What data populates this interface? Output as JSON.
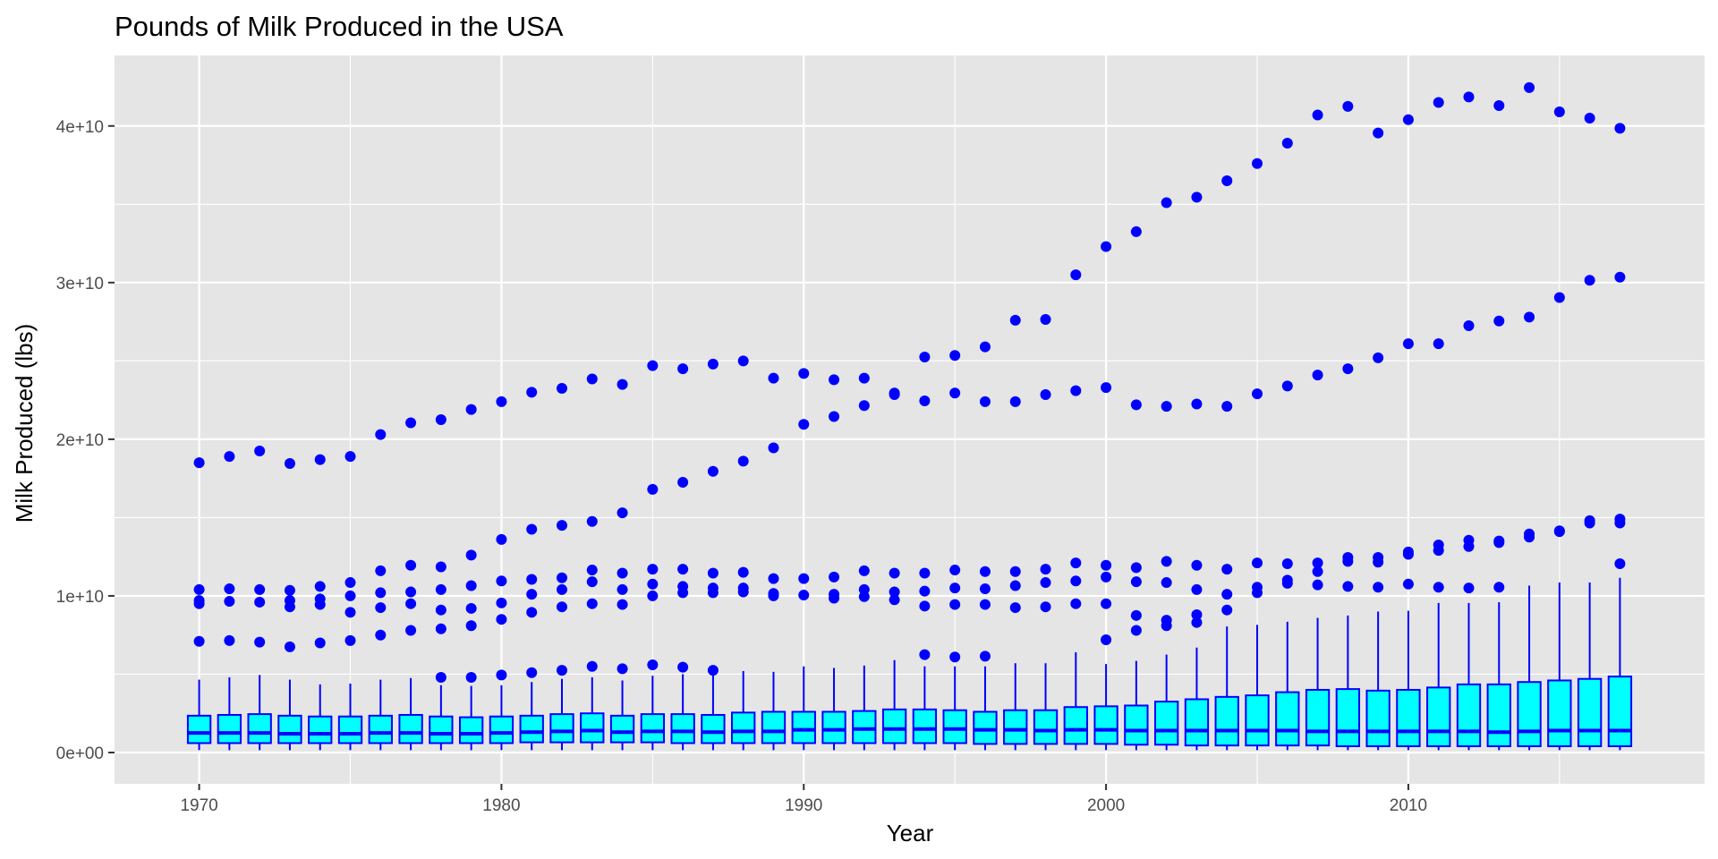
{
  "chart_data": {
    "type": "boxplot",
    "title": "Pounds of Milk Produced in the USA",
    "xlabel": "Year",
    "ylabel": "Milk Produced (lbs)",
    "xlim": [
      1967.2,
      2019.8
    ],
    "ylim": [
      -2000000000.0,
      44500000000.0
    ],
    "x_ticks": [
      1970,
      1980,
      1990,
      2000,
      2010
    ],
    "x_tick_labels": [
      "1970",
      "1980",
      "1990",
      "2000",
      "2010"
    ],
    "y_ticks": [
      0,
      10000000000.0,
      20000000000.0,
      30000000000.0,
      40000000000.0
    ],
    "y_tick_labels": [
      "0e+00",
      "1e+10",
      "2e+10",
      "3e+10",
      "4e+10"
    ],
    "grid": true,
    "legend": "none",
    "colors": {
      "panel": "#E5E5E5",
      "grid": "#FFFFFF",
      "box_fill": "#00FFFF",
      "box_outline": "#0000FF",
      "outlier": "#0000FF"
    },
    "boxes": [
      {
        "year": 1970,
        "min": 150000000.0,
        "q1": 600000000.0,
        "median": 1250000000.0,
        "q3": 2350000000.0,
        "max": 4650000000.0,
        "outliers": [
          7100000000.0,
          9500000000.0,
          9700000000.0,
          10400000000.0,
          18500000000.0
        ]
      },
      {
        "year": 1971,
        "min": 150000000.0,
        "q1": 600000000.0,
        "median": 1250000000.0,
        "q3": 2400000000.0,
        "max": 4800000000.0,
        "outliers": [
          7150000000.0,
          9650000000.0,
          10450000000.0,
          18900000000.0
        ]
      },
      {
        "year": 1972,
        "min": 150000000.0,
        "q1": 600000000.0,
        "median": 1250000000.0,
        "q3": 2450000000.0,
        "max": 4950000000.0,
        "outliers": [
          7050000000.0,
          9600000000.0,
          10400000000.0,
          19250000000.0
        ]
      },
      {
        "year": 1973,
        "min": 150000000.0,
        "q1": 600000000.0,
        "median": 1200000000.0,
        "q3": 2350000000.0,
        "max": 4650000000.0,
        "outliers": [
          6750000000.0,
          9300000000.0,
          9700000000.0,
          10350000000.0,
          18450000000.0
        ]
      },
      {
        "year": 1974,
        "min": 150000000.0,
        "q1": 600000000.0,
        "median": 1200000000.0,
        "q3": 2300000000.0,
        "max": 4350000000.0,
        "outliers": [
          7000000000.0,
          9450000000.0,
          9800000000.0,
          10600000000.0,
          18700000000.0
        ]
      },
      {
        "year": 1975,
        "min": 150000000.0,
        "q1": 600000000.0,
        "median": 1200000000.0,
        "q3": 2300000000.0,
        "max": 4400000000.0,
        "outliers": [
          7150000000.0,
          8950000000.0,
          10000000000.0,
          10850000000.0,
          18900000000.0
        ]
      },
      {
        "year": 1976,
        "min": 150000000.0,
        "q1": 600000000.0,
        "median": 1250000000.0,
        "q3": 2350000000.0,
        "max": 4650000000.0,
        "outliers": [
          7500000000.0,
          9250000000.0,
          10200000000.0,
          11600000000.0,
          20300000000.0
        ]
      },
      {
        "year": 1977,
        "min": 150000000.0,
        "q1": 600000000.0,
        "median": 1250000000.0,
        "q3": 2400000000.0,
        "max": 4750000000.0,
        "outliers": [
          7800000000.0,
          9500000000.0,
          10250000000.0,
          11950000000.0,
          21050000000.0
        ]
      },
      {
        "year": 1978,
        "min": 150000000.0,
        "q1": 600000000.0,
        "median": 1200000000.0,
        "q3": 2300000000.0,
        "max": 4300000000.0,
        "outliers": [
          4800000000.0,
          7900000000.0,
          9100000000.0,
          10400000000.0,
          11850000000.0,
          21250000000.0
        ]
      },
      {
        "year": 1979,
        "min": 150000000.0,
        "q1": 600000000.0,
        "median": 1200000000.0,
        "q3": 2250000000.0,
        "max": 4250000000.0,
        "outliers": [
          4800000000.0,
          8100000000.0,
          9200000000.0,
          10650000000.0,
          12600000000.0,
          21900000000.0
        ]
      },
      {
        "year": 1980,
        "min": 150000000.0,
        "q1": 600000000.0,
        "median": 1250000000.0,
        "q3": 2300000000.0,
        "max": 4300000000.0,
        "outliers": [
          4950000000.0,
          8500000000.0,
          9550000000.0,
          10950000000.0,
          13600000000.0,
          22400000000.0
        ]
      },
      {
        "year": 1981,
        "min": 150000000.0,
        "q1": 650000000.0,
        "median": 1300000000.0,
        "q3": 2350000000.0,
        "max": 4500000000.0,
        "outliers": [
          5100000000.0,
          8950000000.0,
          10100000000.0,
          11050000000.0,
          14250000000.0,
          23000000000.0
        ]
      },
      {
        "year": 1982,
        "min": 150000000.0,
        "q1": 650000000.0,
        "median": 1350000000.0,
        "q3": 2450000000.0,
        "max": 4700000000.0,
        "outliers": [
          5250000000.0,
          9300000000.0,
          10400000000.0,
          11150000000.0,
          14500000000.0,
          23250000000.0
        ]
      },
      {
        "year": 1983,
        "min": 150000000.0,
        "q1": 650000000.0,
        "median": 1400000000.0,
        "q3": 2500000000.0,
        "max": 4800000000.0,
        "outliers": [
          5500000000.0,
          9500000000.0,
          10900000000.0,
          11650000000.0,
          14750000000.0,
          23850000000.0
        ]
      },
      {
        "year": 1984,
        "min": 150000000.0,
        "q1": 650000000.0,
        "median": 1300000000.0,
        "q3": 2350000000.0,
        "max": 4600000000.0,
        "outliers": [
          5350000000.0,
          9450000000.0,
          10400000000.0,
          11450000000.0,
          15300000000.0,
          23500000000.0
        ]
      },
      {
        "year": 1985,
        "min": 150000000.0,
        "q1": 650000000.0,
        "median": 1350000000.0,
        "q3": 2450000000.0,
        "max": 4900000000.0,
        "outliers": [
          5600000000.0,
          10000000000.0,
          10750000000.0,
          11700000000.0,
          16800000000.0,
          24700000000.0
        ]
      },
      {
        "year": 1986,
        "min": 150000000.0,
        "q1": 600000000.0,
        "median": 1350000000.0,
        "q3": 2450000000.0,
        "max": 5000000000.0,
        "outliers": [
          5450000000.0,
          10200000000.0,
          10600000000.0,
          11700000000.0,
          17250000000.0,
          24500000000.0
        ]
      },
      {
        "year": 1987,
        "min": 150000000.0,
        "q1": 600000000.0,
        "median": 1300000000.0,
        "q3": 2400000000.0,
        "max": 5100000000.0,
        "outliers": [
          5250000000.0,
          10200000000.0,
          10500000000.0,
          11450000000.0,
          17950000000.0,
          24800000000.0
        ]
      },
      {
        "year": 1988,
        "min": 150000000.0,
        "q1": 600000000.0,
        "median": 1350000000.0,
        "q3": 2550000000.0,
        "max": 5200000000.0,
        "outliers": [
          10250000000.0,
          10500000000.0,
          11500000000.0,
          18600000000.0,
          25000000000.0
        ]
      },
      {
        "year": 1989,
        "min": 150000000.0,
        "q1": 600000000.0,
        "median": 1350000000.0,
        "q3": 2600000000.0,
        "max": 5150000000.0,
        "outliers": [
          10000000000.0,
          10150000000.0,
          11100000000.0,
          19450000000.0,
          23900000000.0
        ]
      },
      {
        "year": 1990,
        "min": 150000000.0,
        "q1": 600000000.0,
        "median": 1450000000.0,
        "q3": 2600000000.0,
        "max": 5500000000.0,
        "outliers": [
          10050000000.0,
          11100000000.0,
          20950000000.0,
          24200000000.0
        ]
      },
      {
        "year": 1991,
        "min": 150000000.0,
        "q1": 600000000.0,
        "median": 1450000000.0,
        "q3": 2600000000.0,
        "max": 5400000000.0,
        "outliers": [
          9850000000.0,
          10100000000.0,
          11200000000.0,
          21450000000.0,
          23800000000.0
        ]
      },
      {
        "year": 1992,
        "min": 150000000.0,
        "q1": 600000000.0,
        "median": 1500000000.0,
        "q3": 2650000000.0,
        "max": 5550000000.0,
        "outliers": [
          9950000000.0,
          10400000000.0,
          11600000000.0,
          22150000000.0,
          23900000000.0
        ]
      },
      {
        "year": 1993,
        "min": 150000000.0,
        "q1": 600000000.0,
        "median": 1500000000.0,
        "q3": 2750000000.0,
        "max": 5900000000.0,
        "outliers": [
          9750000000.0,
          10250000000.0,
          11450000000.0,
          22950000000.0,
          22850000000.0
        ]
      },
      {
        "year": 1994,
        "min": 150000000.0,
        "q1": 600000000.0,
        "median": 1500000000.0,
        "q3": 2750000000.0,
        "max": 5500000000.0,
        "outliers": [
          6250000000.0,
          9350000000.0,
          10300000000.0,
          11450000000.0,
          22450000000.0,
          25250000000.0
        ]
      },
      {
        "year": 1995,
        "min": 150000000.0,
        "q1": 600000000.0,
        "median": 1500000000.0,
        "q3": 2700000000.0,
        "max": 5500000000.0,
        "outliers": [
          6100000000.0,
          9450000000.0,
          10500000000.0,
          11650000000.0,
          22950000000.0,
          25350000000.0
        ]
      },
      {
        "year": 1996,
        "min": 150000000.0,
        "q1": 550000000.0,
        "median": 1450000000.0,
        "q3": 2600000000.0,
        "max": 5500000000.0,
        "outliers": [
          6150000000.0,
          9450000000.0,
          10450000000.0,
          11550000000.0,
          22400000000.0,
          25900000000.0
        ]
      },
      {
        "year": 1997,
        "min": 150000000.0,
        "q1": 550000000.0,
        "median": 1450000000.0,
        "q3": 2700000000.0,
        "max": 5700000000.0,
        "outliers": [
          9250000000.0,
          10650000000.0,
          11550000000.0,
          22400000000.0,
          27600000000.0
        ]
      },
      {
        "year": 1998,
        "min": 150000000.0,
        "q1": 550000000.0,
        "median": 1400000000.0,
        "q3": 2700000000.0,
        "max": 5700000000.0,
        "outliers": [
          9300000000.0,
          10850000000.0,
          11700000000.0,
          22850000000.0,
          27650000000.0
        ]
      },
      {
        "year": 1999,
        "min": 150000000.0,
        "q1": 550000000.0,
        "median": 1450000000.0,
        "q3": 2900000000.0,
        "max": 6400000000.0,
        "outliers": [
          9500000000.0,
          10950000000.0,
          12100000000.0,
          23100000000.0,
          30500000000.0
        ]
      },
      {
        "year": 2000,
        "min": 150000000.0,
        "q1": 550000000.0,
        "median": 1450000000.0,
        "q3": 2950000000.0,
        "max": 5650000000.0,
        "outliers": [
          7200000000.0,
          9500000000.0,
          11200000000.0,
          11950000000.0,
          23300000000.0,
          32300000000.0
        ]
      },
      {
        "year": 2001,
        "min": 150000000.0,
        "q1": 500000000.0,
        "median": 1400000000.0,
        "q3": 3000000000.0,
        "max": 5850000000.0,
        "outliers": [
          7800000000.0,
          8750000000.0,
          10900000000.0,
          11800000000.0,
          22200000000.0,
          33250000000.0
        ]
      },
      {
        "year": 2002,
        "min": 150000000.0,
        "q1": 500000000.0,
        "median": 1400000000.0,
        "q3": 3250000000.0,
        "max": 6250000000.0,
        "outliers": [
          8100000000.0,
          8450000000.0,
          10850000000.0,
          12200000000.0,
          22100000000.0,
          35100000000.0
        ]
      },
      {
        "year": 2003,
        "min": 150000000.0,
        "q1": 450000000.0,
        "median": 1400000000.0,
        "q3": 3400000000.0,
        "max": 6700000000.0,
        "outliers": [
          8300000000.0,
          8800000000.0,
          10400000000.0,
          11950000000.0,
          22250000000.0,
          35450000000.0
        ]
      },
      {
        "year": 2004,
        "min": 150000000.0,
        "q1": 450000000.0,
        "median": 1400000000.0,
        "q3": 3550000000.0,
        "max": 8050000000.0,
        "outliers": [
          9100000000.0,
          10100000000.0,
          11700000000.0,
          22100000000.0,
          36500000000.0
        ]
      },
      {
        "year": 2005,
        "min": 150000000.0,
        "q1": 450000000.0,
        "median": 1400000000.0,
        "q3": 3650000000.0,
        "max": 8150000000.0,
        "outliers": [
          10200000000.0,
          10550000000.0,
          12100000000.0,
          22900000000.0,
          37600000000.0
        ]
      },
      {
        "year": 2006,
        "min": 150000000.0,
        "q1": 450000000.0,
        "median": 1400000000.0,
        "q3": 3850000000.0,
        "max": 8350000000.0,
        "outliers": [
          10800000000.0,
          11000000000.0,
          12050000000.0,
          23400000000.0,
          38900000000.0
        ]
      },
      {
        "year": 2007,
        "min": 150000000.0,
        "q1": 450000000.0,
        "median": 1350000000.0,
        "q3": 4000000000.0,
        "max": 8600000000.0,
        "outliers": [
          10700000000.0,
          11550000000.0,
          12100000000.0,
          24100000000.0,
          40700000000.0
        ]
      },
      {
        "year": 2008,
        "min": 150000000.0,
        "q1": 400000000.0,
        "median": 1350000000.0,
        "q3": 4050000000.0,
        "max": 8750000000.0,
        "outliers": [
          10600000000.0,
          12200000000.0,
          12450000000.0,
          24500000000.0,
          41250000000.0
        ]
      },
      {
        "year": 2009,
        "min": 150000000.0,
        "q1": 400000000.0,
        "median": 1350000000.0,
        "q3": 3950000000.0,
        "max": 9000000000.0,
        "outliers": [
          10550000000.0,
          12150000000.0,
          12450000000.0,
          25200000000.0,
          39550000000.0
        ]
      },
      {
        "year": 2010,
        "min": 150000000.0,
        "q1": 400000000.0,
        "median": 1350000000.0,
        "q3": 4000000000.0,
        "max": 9050000000.0,
        "outliers": [
          10750000000.0,
          12650000000.0,
          12800000000.0,
          26100000000.0,
          40400000000.0
        ]
      },
      {
        "year": 2011,
        "min": 150000000.0,
        "q1": 400000000.0,
        "median": 1350000000.0,
        "q3": 4150000000.0,
        "max": 9550000000.0,
        "outliers": [
          10550000000.0,
          12900000000.0,
          13250000000.0,
          26100000000.0,
          41500000000.0
        ]
      },
      {
        "year": 2012,
        "min": 150000000.0,
        "q1": 400000000.0,
        "median": 1350000000.0,
        "q3": 4350000000.0,
        "max": 9550000000.0,
        "outliers": [
          10500000000.0,
          13150000000.0,
          13550000000.0,
          27250000000.0,
          41850000000.0
        ]
      },
      {
        "year": 2013,
        "min": 150000000.0,
        "q1": 400000000.0,
        "median": 1300000000.0,
        "q3": 4350000000.0,
        "max": 9600000000.0,
        "outliers": [
          10550000000.0,
          13400000000.0,
          13500000000.0,
          27550000000.0,
          41300000000.0
        ]
      },
      {
        "year": 2014,
        "min": 150000000.0,
        "q1": 400000000.0,
        "median": 1350000000.0,
        "q3": 4500000000.0,
        "max": 10650000000.0,
        "outliers": [
          13750000000.0,
          13950000000.0,
          27800000000.0,
          42450000000.0
        ]
      },
      {
        "year": 2015,
        "min": 150000000.0,
        "q1": 400000000.0,
        "median": 1400000000.0,
        "q3": 4600000000.0,
        "max": 10850000000.0,
        "outliers": [
          14100000000.0,
          14150000000.0,
          29050000000.0,
          40900000000.0
        ]
      },
      {
        "year": 2016,
        "min": 150000000.0,
        "q1": 400000000.0,
        "median": 1400000000.0,
        "q3": 4700000000.0,
        "max": 10850000000.0,
        "outliers": [
          14650000000.0,
          14800000000.0,
          30150000000.0,
          40500000000.0
        ]
      },
      {
        "year": 2017,
        "min": 150000000.0,
        "q1": 400000000.0,
        "median": 1400000000.0,
        "q3": 4850000000.0,
        "max": 11150000000.0,
        "outliers": [
          12050000000.0,
          14650000000.0,
          14900000000.0,
          30350000000.0,
          39850000000.0
        ]
      }
    ]
  }
}
